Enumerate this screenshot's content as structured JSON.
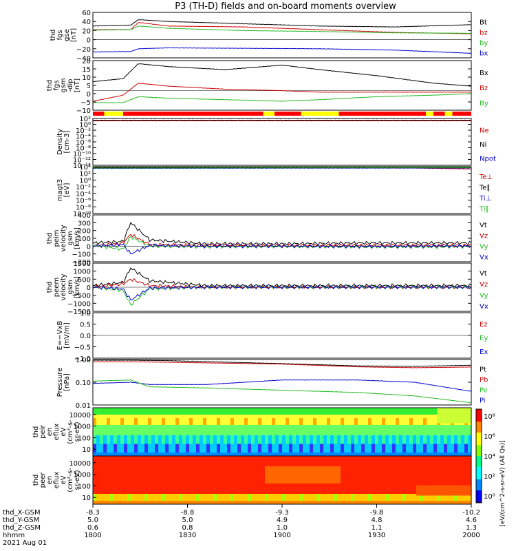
{
  "page": {
    "title": "P3 (TH-D) fields and on-board moments overview"
  },
  "colors": {
    "black": "#000000",
    "red": "#cc0000",
    "green": "#22bb22",
    "blue": "#0000cc",
    "yellow": "#ffff00",
    "dark_red": "#aa0000",
    "light_green": "#33dd33"
  },
  "chart_data": {
    "type": "line",
    "x_axis": {
      "ticks": [
        "1800",
        "1830",
        "1900",
        "1930",
        "2000"
      ],
      "rows": [
        {
          "label": "thd_X-GSM",
          "values": [
            "-8.3",
            "-8.8",
            "-9.3",
            "-9.8",
            "-10.2"
          ]
        },
        {
          "label": "thd_Y-GSM",
          "values": [
            "5.0",
            "5.0",
            "4.9",
            "4.8",
            "4.6"
          ]
        },
        {
          "label": "thd_Z-GSM",
          "values": [
            "0.6",
            "0.8",
            "1.0",
            "1.1",
            "1.3"
          ]
        },
        {
          "label": "hhmm",
          "values": [
            "1800",
            "1830",
            "1900",
            "1930",
            "2000"
          ]
        }
      ],
      "date": "2021 Aug 01"
    },
    "panels": [
      {
        "ylabel": [
          "thd",
          "fgs",
          "gse",
          "[nT]"
        ],
        "ticks": [
          "60",
          "40",
          "20",
          "0",
          "−20",
          "−40"
        ],
        "ylim": [
          -40,
          60
        ],
        "log": false,
        "legend": [
          {
            "name": "Bt",
            "color": "#000000"
          },
          {
            "name": "bz",
            "color": "#cc0000"
          },
          {
            "name": "by",
            "color": "#22bb22"
          },
          {
            "name": "bx",
            "color": "#0000cc"
          }
        ],
        "series": [
          {
            "name": "Bt",
            "color": "#000000",
            "x": [
              0,
              0.1,
              0.12,
              0.2,
              0.4,
              0.6,
              0.8,
              1.0
            ],
            "y": [
              30,
              32,
              44,
              40,
              35,
              30,
              28,
              33
            ]
          },
          {
            "name": "bz",
            "color": "#cc0000",
            "x": [
              0,
              0.1,
              0.12,
              0.2,
              0.4,
              0.6,
              0.8,
              1.0
            ],
            "y": [
              22,
              22,
              38,
              30,
              28,
              22,
              16,
              13
            ]
          },
          {
            "name": "by",
            "color": "#22bb22",
            "x": [
              0,
              0.1,
              0.12,
              0.2,
              0.4,
              0.6,
              0.8,
              1.0
            ],
            "y": [
              21,
              22,
              30,
              25,
              20,
              18,
              15,
              14
            ]
          },
          {
            "name": "bx",
            "color": "#0000cc",
            "x": [
              0,
              0.1,
              0.12,
              0.2,
              0.4,
              0.6,
              0.8,
              1.0
            ],
            "y": [
              -27,
              -26,
              -20,
              -18,
              -19,
              -20,
              -23,
              -30
            ]
          }
        ]
      },
      {
        "ylabel": [
          "thd",
          "fgs",
          "gsm",
          "-dip",
          "[nT]"
        ],
        "ticks": [
          "20",
          "15",
          "10",
          "5",
          "0",
          "−5",
          "−10"
        ],
        "ylim": [
          -13,
          20
        ],
        "log": false,
        "legend": [
          {
            "name": "Bx",
            "color": "#000000"
          },
          {
            "name": "Bz",
            "color": "#cc0000"
          },
          {
            "name": "By",
            "color": "#22bb22"
          }
        ],
        "series": [
          {
            "name": "Bx",
            "color": "#000000",
            "x": [
              0,
              0.08,
              0.12,
              0.2,
              0.35,
              0.5,
              0.6,
              0.75,
              0.9,
              1.0
            ],
            "y": [
              6,
              8,
              18,
              16,
              14,
              17,
              14,
              10,
              5,
              3
            ]
          },
          {
            "name": "Bz",
            "color": "#cc0000",
            "x": [
              0,
              0.08,
              0.12,
              0.2,
              0.35,
              0.5,
              0.6,
              0.75,
              0.9,
              1.0
            ],
            "y": [
              -7,
              -3,
              5,
              3,
              1,
              0,
              -1,
              -1,
              -1,
              -1
            ]
          },
          {
            "name": "By",
            "color": "#22bb22",
            "x": [
              0,
              0.08,
              0.12,
              0.2,
              0.35,
              0.5,
              0.6,
              0.75,
              0.9,
              1.0
            ],
            "y": [
              -8,
              -8,
              -4,
              -5,
              -6,
              -7,
              -6,
              -4,
              -3,
              -2
            ]
          }
        ]
      },
      {
        "ylabel": [
          "Density",
          "[cm-3]"
        ],
        "ticks": [
          "10²",
          "10⁰",
          "10⁻²",
          "10⁻⁴",
          "10⁻⁶",
          "10⁻⁸",
          "10⁻¹⁰",
          "10⁻¹²",
          "10⁻¹⁴"
        ],
        "ylim": [
          -14,
          2
        ],
        "log": true,
        "legend": [
          {
            "name": "Ne",
            "color": "#cc0000"
          },
          {
            "name": "Ni",
            "color": "#000000"
          },
          {
            "name": "Npot",
            "color": "#0000cc"
          }
        ],
        "series": [
          {
            "name": "Ne",
            "color": "#cc0000",
            "x": [
              0,
              1
            ],
            "y": [
              1.2,
              1.2
            ]
          },
          {
            "name": "Ni",
            "color": "#000000",
            "x": [
              0,
              1
            ],
            "y": [
              1.4,
              1.4
            ]
          }
        ]
      },
      {
        "ylabel": [
          "magt3",
          "[eV]"
        ],
        "ticks": [
          "10⁴",
          "10²",
          "10⁰",
          "10⁻²",
          "10⁻⁴",
          "10⁻⁶",
          "10⁻⁸",
          "10⁻¹⁰"
        ],
        "ylim": [
          -10,
          4
        ],
        "log": true,
        "legend": [
          {
            "name": "Te⊥",
            "color": "#cc0000"
          },
          {
            "name": "Te∥",
            "color": "#000000"
          },
          {
            "name": "Ti⊥",
            "color": "#0000cc"
          },
          {
            "name": "Ti∥",
            "color": "#22bb22"
          }
        ],
        "series": [
          {
            "name": "Te⊥",
            "color": "#cc0000",
            "x": [
              0,
              0.85,
              1
            ],
            "y": [
              3.7,
              3.6,
              3.3
            ]
          },
          {
            "name": "Te∥",
            "color": "#000000",
            "x": [
              0,
              1
            ],
            "y": [
              3.8,
              3.8
            ]
          },
          {
            "name": "Ti⊥",
            "color": "#0000cc",
            "x": [
              0,
              1
            ],
            "y": [
              3.5,
              3.6
            ]
          },
          {
            "name": "Ti∥",
            "color": "#22bb22",
            "x": [
              0,
              1
            ],
            "y": [
              3.6,
              3.7
            ]
          }
        ]
      },
      {
        "ylabel": [
          "thd",
          "peim",
          "velocity",
          "gsm",
          "[km/s]"
        ],
        "ticks": [
          "400",
          "300",
          "200",
          "100",
          "0",
          "−100",
          "−200"
        ],
        "ylim": [
          -200,
          400
        ],
        "log": false,
        "legend": [
          {
            "name": "Vt",
            "color": "#000000"
          },
          {
            "name": "Vz",
            "color": "#cc0000"
          },
          {
            "name": "Vy",
            "color": "#22bb22"
          },
          {
            "name": "Vx",
            "color": "#0000cc"
          }
        ],
        "series": [
          {
            "name": "Vt",
            "color": "#000000",
            "x": [
              0,
              0.08,
              0.1,
              0.15,
              0.3,
              0.5,
              0.7,
              0.9,
              1.0
            ],
            "y": [
              40,
              60,
              300,
              80,
              30,
              30,
              40,
              40,
              40
            ]
          },
          {
            "name": "Vz",
            "color": "#cc0000",
            "x": [
              0,
              0.08,
              0.1,
              0.15,
              0.3,
              0.5,
              0.7,
              0.9,
              1.0
            ],
            "y": [
              0,
              40,
              150,
              20,
              10,
              5,
              10,
              10,
              10
            ]
          },
          {
            "name": "Vy",
            "color": "#22bb22",
            "x": [
              0,
              0.08,
              0.1,
              0.15,
              0.3,
              0.5,
              0.7,
              0.9,
              1.0
            ],
            "y": [
              10,
              -40,
              120,
              0,
              -10,
              -5,
              -10,
              -10,
              -5
            ]
          },
          {
            "name": "Vx",
            "color": "#0000cc",
            "x": [
              0,
              0.08,
              0.1,
              0.15,
              0.3,
              0.5,
              0.7,
              0.9,
              1.0
            ],
            "y": [
              0,
              20,
              -100,
              10,
              0,
              0,
              -5,
              0,
              0
            ]
          }
        ]
      },
      {
        "ylabel": [
          "thd",
          "peem",
          "velocity",
          "gsm",
          "[km/s]"
        ],
        "ticks": [
          "1500",
          "1000",
          "500",
          "0",
          "−500",
          "−1000",
          "−1500"
        ],
        "ylim": [
          -1500,
          1500
        ],
        "log": false,
        "legend": [
          {
            "name": "Vt",
            "color": "#000000"
          },
          {
            "name": "Vz",
            "color": "#cc0000"
          },
          {
            "name": "Vy",
            "color": "#22bb22"
          },
          {
            "name": "Vx",
            "color": "#0000cc"
          }
        ],
        "series": [
          {
            "name": "Vt",
            "color": "#000000",
            "x": [
              0,
              0.08,
              0.1,
              0.15,
              0.3,
              0.5,
              0.7,
              0.9,
              1.0
            ],
            "y": [
              100,
              300,
              1200,
              400,
              100,
              100,
              100,
              100,
              100
            ]
          },
          {
            "name": "Vz",
            "color": "#cc0000",
            "x": [
              0,
              0.08,
              0.1,
              0.15,
              0.3,
              0.5,
              0.7,
              0.9,
              1.0
            ],
            "y": [
              0,
              200,
              500,
              100,
              0,
              0,
              0,
              0,
              0
            ]
          },
          {
            "name": "Vy",
            "color": "#22bb22",
            "x": [
              0,
              0.08,
              0.1,
              0.15,
              0.3,
              0.5,
              0.7,
              0.9,
              1.0
            ],
            "y": [
              0,
              -200,
              -1100,
              -100,
              0,
              0,
              0,
              0,
              0
            ]
          },
          {
            "name": "Vx",
            "color": "#0000cc",
            "x": [
              0,
              0.08,
              0.1,
              0.15,
              0.3,
              0.5,
              0.7,
              0.9,
              1.0
            ],
            "y": [
              0,
              -100,
              -800,
              -50,
              0,
              0,
              0,
              0,
              0
            ]
          }
        ]
      },
      {
        "ylabel": [
          "E=−VxB",
          "[mV/m]"
        ],
        "ticks": [
          "1.0",
          "0.5",
          "0.0",
          "−0.5",
          "−1.0"
        ],
        "ylim": [
          -1,
          1
        ],
        "log": false,
        "legend": [
          {
            "name": "Ez",
            "color": "#cc0000"
          },
          {
            "name": "Ey",
            "color": "#22bb22"
          },
          {
            "name": "Ex",
            "color": "#0000cc"
          }
        ],
        "series": []
      },
      {
        "ylabel": [
          "Pressure",
          "[nPa]"
        ],
        "ticks": [
          "1.00",
          "0.10",
          "0.01"
        ],
        "ylim": [
          -2,
          0
        ],
        "log": true,
        "legend": [
          {
            "name": "Pt",
            "color": "#000000"
          },
          {
            "name": "Pb",
            "color": "#cc0000"
          },
          {
            "name": "Pe",
            "color": "#22bb22"
          },
          {
            "name": "Pi",
            "color": "#0000cc"
          }
        ],
        "series": [
          {
            "name": "Pt",
            "color": "#000000",
            "x": [
              0,
              0.1,
              0.2,
              0.5,
              0.7,
              0.85,
              1.0
            ],
            "y": [
              -0.03,
              -0.03,
              -0.05,
              -0.18,
              -0.28,
              -0.3,
              -0.25
            ]
          },
          {
            "name": "Pb",
            "color": "#cc0000",
            "x": [
              0,
              0.1,
              0.2,
              0.5,
              0.7,
              0.85,
              1.0
            ],
            "y": [
              -0.1,
              -0.1,
              -0.12,
              -0.2,
              -0.32,
              -0.36,
              -0.33
            ]
          },
          {
            "name": "Pi",
            "color": "#0000cc",
            "x": [
              0,
              0.1,
              0.15,
              0.3,
              0.5,
              0.7,
              0.85,
              1.0
            ],
            "y": [
              -1.05,
              -1.0,
              -1.1,
              -1.1,
              -0.9,
              -0.9,
              -1.0,
              -1.4
            ]
          },
          {
            "name": "Pe",
            "color": "#22bb22",
            "x": [
              0,
              0.1,
              0.15,
              0.3,
              0.5,
              0.7,
              0.85,
              1.0
            ],
            "y": [
              -0.95,
              -0.9,
              -1.2,
              -1.25,
              -1.35,
              -1.45,
              -1.6,
              -1.9
            ]
          }
        ]
      }
    ],
    "spectrograms": [
      {
        "ylabel": [
          "thd",
          "peir",
          "en",
          "eflux",
          "eV",
          "(cm²-s-",
          "sr-eV)"
        ],
        "ticks": [
          "10000",
          "1000",
          "100",
          "10"
        ]
      },
      {
        "ylabel": [
          "thd",
          "peer",
          "en",
          "eflux",
          "eV",
          "(cm²-s-",
          "sr-eV)"
        ],
        "ticks": [
          "10000",
          "1000",
          "100",
          "10"
        ]
      }
    ],
    "colorbar": {
      "ticks": [
        "10⁸",
        "10⁶",
        "10⁴",
        "10²",
        "10⁰"
      ],
      "label": "[eV/(cm^2-s-sr-eV) (All Qs)]"
    },
    "mode_bar": {
      "segments": [
        [
          "red",
          0,
          0.03
        ],
        [
          "yellow",
          0.03,
          0.08
        ],
        [
          "red",
          0.08,
          0.45
        ],
        [
          "yellow",
          0.45,
          0.48
        ],
        [
          "red",
          0.48,
          0.55
        ],
        [
          "yellow",
          0.55,
          0.65
        ],
        [
          "red",
          0.65,
          0.88
        ],
        [
          "yellow",
          0.88,
          0.9
        ],
        [
          "red",
          0.9,
          0.93
        ],
        [
          "yellow",
          0.93,
          0.95
        ],
        [
          "red",
          0.95,
          1.0
        ]
      ]
    }
  }
}
